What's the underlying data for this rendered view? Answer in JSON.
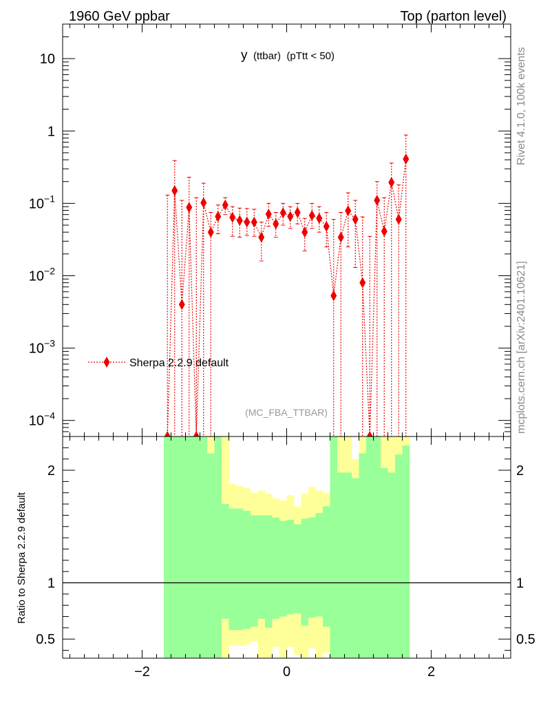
{
  "header": {
    "left": "1960 GeV ppbar",
    "right": "Top (parton level)"
  },
  "side": {
    "rivet": "Rivet 4.1.0,  100k events",
    "mcplots": "mcplots.cern.ch [arXiv:2401.10621]"
  },
  "colors": {
    "mc": "#ee0000",
    "band_inner": "#99ff99",
    "band_outer": "#ffff99"
  },
  "chart_data": [
    {
      "type": "scatter",
      "title": "y",
      "title_sub": "(ttbar)",
      "title_cut": "(pTtt < 50)",
      "watermark": "(MC_FBA_TTBAR)",
      "legend_label": "Sherpa 2.2.9 default",
      "yscale": "log",
      "xlim": [
        -3.1,
        3.1
      ],
      "ylim": [
        6e-05,
        30
      ],
      "y_ticks": [
        {
          "value": 10,
          "label": "10"
        },
        {
          "value": 1,
          "label": "1"
        },
        {
          "value": 0.1,
          "mant": "10",
          "exp": "−1"
        },
        {
          "value": 0.01,
          "mant": "10",
          "exp": "−2"
        },
        {
          "value": 0.001,
          "mant": "10",
          "exp": "−3"
        },
        {
          "value": 0.0001,
          "mant": "10",
          "exp": "−4"
        }
      ],
      "series": [
        {
          "name": "Sherpa 2.2.9 default",
          "x": [
            -1.65,
            -1.55,
            -1.45,
            -1.35,
            -1.25,
            -1.15,
            -1.05,
            -0.95,
            -0.85,
            -0.75,
            -0.65,
            -0.55,
            -0.45,
            -0.35,
            -0.25,
            -0.15,
            -0.05,
            0.05,
            0.15,
            0.25,
            0.35,
            0.45,
            0.55,
            0.65,
            0.75,
            0.85,
            0.95,
            1.05,
            1.15,
            1.25,
            1.35,
            1.45,
            1.55,
            1.65
          ],
          "y": [
            6e-05,
            0.15,
            0.004,
            0.088,
            6e-05,
            0.102,
            0.04,
            0.066,
            0.095,
            0.064,
            0.058,
            0.055,
            0.055,
            0.034,
            0.071,
            0.052,
            0.074,
            0.066,
            0.075,
            0.04,
            0.068,
            0.062,
            0.048,
            0.0053,
            0.034,
            0.079,
            0.06,
            0.008,
            6e-05,
            0.11,
            0.041,
            0.195,
            0.06,
            0.41
          ],
          "y_up": [
            0.13,
            0.39,
            0.11,
            0.23,
            0.12,
            0.19,
            0.075,
            0.095,
            0.12,
            0.09,
            0.086,
            0.085,
            0.083,
            0.055,
            0.1,
            0.075,
            0.1,
            0.09,
            0.1,
            0.062,
            0.1,
            0.09,
            0.075,
            0.06,
            0.075,
            0.14,
            0.11,
            0.065,
            0.035,
            0.2,
            0.12,
            0.36,
            0.18,
            0.88
          ],
          "y_down": [
            6e-05,
            6e-05,
            6e-05,
            6e-05,
            6e-05,
            6e-05,
            6e-05,
            0.038,
            0.07,
            0.035,
            0.034,
            0.036,
            0.035,
            0.016,
            0.048,
            0.034,
            0.05,
            0.045,
            0.052,
            0.022,
            0.045,
            0.04,
            0.025,
            6e-05,
            6e-05,
            0.025,
            0.013,
            6e-05,
            6e-05,
            6e-05,
            6e-05,
            6e-05,
            6e-05,
            6e-05
          ]
        }
      ]
    },
    {
      "type": "area",
      "ylabel": "Ratio to Sherpa 2.2.9 default",
      "xlim": [
        -3.1,
        3.1
      ],
      "ylim": [
        0.33,
        2.3
      ],
      "y_ticks": [
        0.5,
        1,
        2
      ],
      "y_tick_labels": [
        "0.5",
        "1",
        "2"
      ],
      "x_ticks": [
        -2,
        0,
        2
      ],
      "x_tick_labels": [
        "−2",
        "0",
        "2"
      ],
      "reference_line": 1,
      "bin_edges": [
        -1.7,
        -1.6,
        -1.5,
        -1.4,
        -1.3,
        -1.2,
        -1.1,
        -1.0,
        -0.9,
        -0.8,
        -0.7,
        -0.6,
        -0.5,
        -0.4,
        -0.3,
        -0.2,
        -0.1,
        0.0,
        0.1,
        0.2,
        0.3,
        0.4,
        0.5,
        0.6,
        0.7,
        0.8,
        0.9,
        1.0,
        1.1,
        1.2,
        1.3,
        1.4,
        1.5,
        1.6,
        1.7
      ],
      "band_inner_low": [
        0.33,
        0.33,
        0.33,
        0.33,
        0.33,
        0.33,
        0.33,
        0.33,
        0.68,
        0.58,
        0.58,
        0.59,
        0.61,
        0.68,
        0.6,
        0.68,
        0.7,
        0.72,
        0.73,
        0.62,
        0.69,
        0.7,
        0.61,
        0.33,
        0.33,
        0.33,
        0.33,
        0.33,
        0.33,
        0.33,
        0.33,
        0.33,
        0.33,
        0.33
      ],
      "band_inner_high": [
        2.3,
        2.3,
        2.3,
        2.3,
        2.3,
        2.3,
        2.15,
        2.3,
        1.7,
        1.66,
        1.66,
        1.64,
        1.6,
        1.6,
        1.6,
        1.58,
        1.55,
        1.56,
        1.52,
        1.57,
        1.58,
        1.62,
        1.68,
        2.3,
        1.98,
        1.98,
        1.93,
        2.15,
        2.3,
        2.3,
        2.02,
        1.98,
        2.14,
        2.22
      ],
      "band_outer_low": [
        0.33,
        0.33,
        0.33,
        0.33,
        0.33,
        0.33,
        0.33,
        0.33,
        0.33,
        0.44,
        0.44,
        0.45,
        0.48,
        0.33,
        0.33,
        0.43,
        0.33,
        0.43,
        0.36,
        0.33,
        0.42,
        0.33,
        0.38,
        0.33,
        0.33,
        0.33,
        0.33,
        0.33,
        0.33,
        0.33,
        0.33,
        0.33,
        0.33,
        0.33
      ],
      "band_outer_high": [
        2.3,
        2.3,
        2.3,
        2.3,
        2.3,
        2.3,
        2.3,
        2.3,
        2.3,
        1.88,
        1.86,
        1.84,
        1.8,
        1.82,
        1.79,
        1.75,
        1.73,
        1.78,
        1.68,
        1.79,
        1.85,
        1.82,
        1.8,
        2.3,
        2.3,
        2.3,
        2.1,
        2.3,
        2.3,
        2.3,
        2.3,
        2.3,
        2.3,
        2.3
      ]
    }
  ]
}
